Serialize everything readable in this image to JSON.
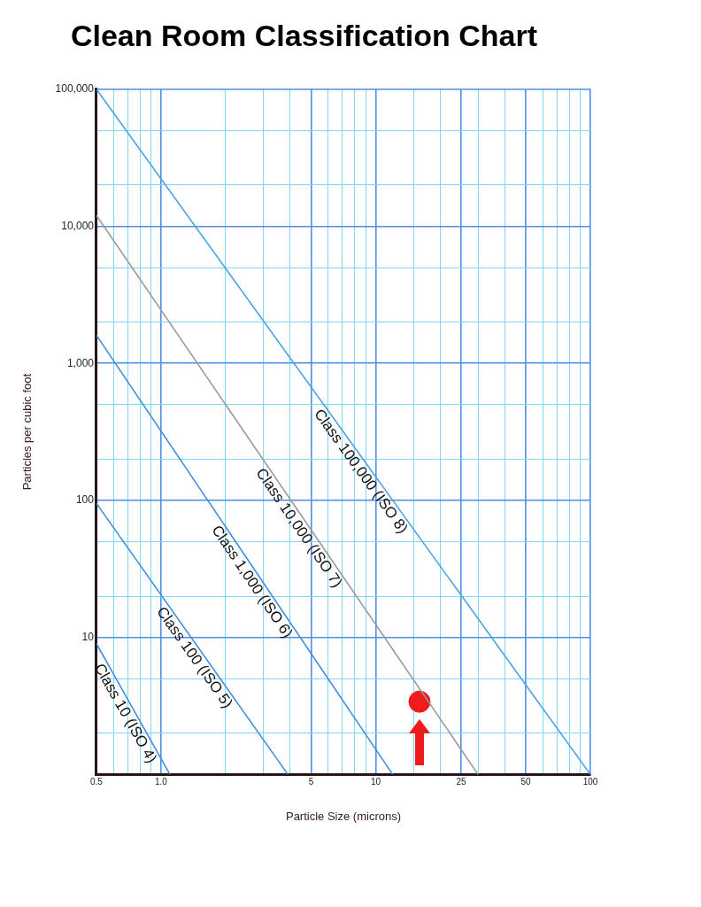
{
  "chart_data": {
    "type": "line",
    "title": "Clean Room Classification Chart",
    "xlabel": "Particle Size (microns)",
    "ylabel": "Particles per cubic foot",
    "log": "xy",
    "grid": true,
    "legend": false,
    "xlim": [
      0.5,
      100
    ],
    "ylim": [
      1,
      100000
    ],
    "xticks": [
      {
        "value": 0.5,
        "label": "0.5"
      },
      {
        "value": 0.6,
        "label": null
      },
      {
        "value": 0.7,
        "label": null
      },
      {
        "value": 0.8,
        "label": null
      },
      {
        "value": 0.9,
        "label": null
      },
      {
        "value": 1,
        "label": "1.0"
      },
      {
        "value": 2,
        "label": null
      },
      {
        "value": 3,
        "label": null
      },
      {
        "value": 4,
        "label": null
      },
      5,
      {
        "value": 6,
        "label": null
      },
      {
        "value": 7,
        "label": null
      },
      {
        "value": 8,
        "label": null
      },
      {
        "value": 9,
        "label": null
      },
      10,
      {
        "value": 15,
        "label": null
      },
      {
        "value": 20,
        "label": null
      },
      25,
      {
        "value": 30,
        "label": null
      },
      {
        "value": 40,
        "label": null
      },
      50,
      {
        "value": 60,
        "label": null
      },
      {
        "value": 70,
        "label": null
      },
      {
        "value": 80,
        "label": null
      },
      {
        "value": 90,
        "label": null
      },
      100
    ],
    "yticks": [
      {
        "value": 2,
        "label": null
      },
      {
        "value": 5,
        "label": null
      },
      10,
      {
        "value": 20,
        "label": null
      },
      {
        "value": 50,
        "label": null
      },
      100,
      {
        "value": 200,
        "label": null
      },
      {
        "value": 500,
        "label": null
      },
      {
        "value": 1000,
        "label": "1,000"
      },
      {
        "value": 2000,
        "label": null
      },
      {
        "value": 5000,
        "label": null
      },
      {
        "value": 10000,
        "label": "10,000"
      },
      {
        "value": 20000,
        "label": null
      },
      {
        "value": 50000,
        "label": null
      },
      {
        "value": 100000,
        "label": "100,000"
      }
    ],
    "series": [
      {
        "name": "Class 10 (ISO 4)",
        "color": "#3f8fe0",
        "x": [
          0.5,
          1.1
        ],
        "values": [
          9,
          1
        ]
      },
      {
        "name": "Class 100 (ISO 5)",
        "color": "#3f8fe0",
        "x": [
          0.5,
          3.9
        ],
        "values": [
          95,
          1
        ]
      },
      {
        "name": "Class 1,000 (ISO 6)",
        "color": "#3f8fe0",
        "x": [
          0.5,
          12
        ],
        "values": [
          1600,
          1
        ]
      },
      {
        "name": "Class 10,000 (ISO 7)",
        "color": "#9a9a9a",
        "x": [
          0.5,
          30
        ],
        "values": [
          12000,
          1
        ]
      },
      {
        "name": "Class 100,000 (ISO 8)",
        "color": "#4aa3e6",
        "x": [
          0.5,
          100
        ],
        "values": [
          100000,
          1
        ]
      },
      {
        "type": "scatter",
        "color": "#ee1c1c",
        "x": [
          16
        ],
        "values": [
          3.4
        ]
      }
    ]
  }
}
